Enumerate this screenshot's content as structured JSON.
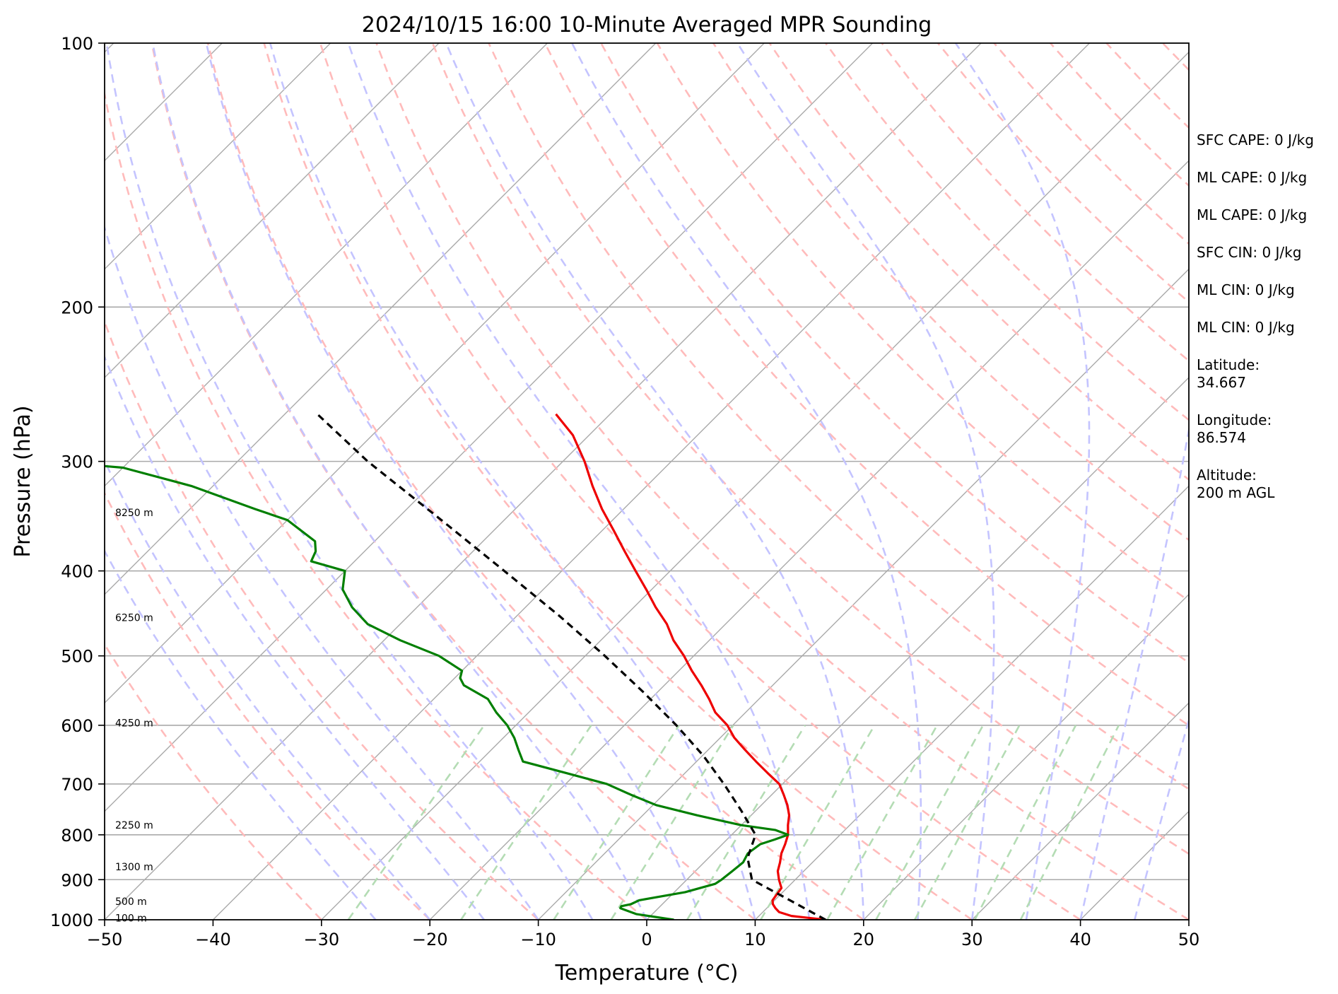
{
  "chart_data": {
    "type": "line",
    "subtype": "skew-t log-p sounding",
    "title": "2024/10/15 16:00 10-Minute Averaged MPR Sounding",
    "xlabel": "Temperature (°C)",
    "ylabel": "Pressure (hPa)",
    "xlim": [
      -50,
      50
    ],
    "ylim": [
      1000,
      100
    ],
    "y_scale": "log",
    "skew": true,
    "x_ticks": [
      "−50",
      "−40",
      "−30",
      "−20",
      "−10",
      "0",
      "10",
      "20",
      "30",
      "40",
      "50"
    ],
    "y_ticks": [
      "100",
      "200",
      "300",
      "400",
      "500",
      "600",
      "700",
      "800",
      "900",
      "1000"
    ],
    "grid": true,
    "colors": {
      "temperature": "#ee0000",
      "dewpoint": "#007f00",
      "parcel": "#000000",
      "isotherm": "#aaaaaa",
      "dry_adiabat": "#ffbbbb",
      "moist_adiabat": "#c4c4ff",
      "mixing_ratio": "#b4dcb4"
    },
    "series": [
      {
        "role": "temperature",
        "p": [
          1000,
          990,
          980,
          970,
          960,
          950,
          940,
          930,
          920,
          910,
          900,
          880,
          860,
          840,
          820,
          800,
          780,
          760,
          740,
          720,
          700,
          680,
          660,
          640,
          620,
          600,
          580,
          560,
          540,
          520,
          500,
          480,
          460,
          440,
          420,
          400,
          380,
          360,
          340,
          320,
          300,
          280,
          265
        ],
        "t": [
          16.5,
          13.0,
          11.5,
          10.8,
          10.2,
          9.8,
          9.7,
          9.6,
          9.5,
          9.0,
          8.5,
          7.6,
          7.0,
          6.3,
          5.8,
          5.2,
          4.3,
          3.5,
          2.4,
          1.1,
          -0.3,
          -2.4,
          -4.5,
          -6.6,
          -8.7,
          -10.5,
          -12.8,
          -14.6,
          -16.6,
          -18.8,
          -20.9,
          -23.3,
          -25.4,
          -28.0,
          -30.5,
          -33.2,
          -36.0,
          -38.9,
          -42.0,
          -45.0,
          -48.0,
          -51.5,
          -55.0
        ]
      },
      {
        "role": "dewpoint",
        "p": [
          1000,
          985,
          970,
          965,
          960,
          950,
          930,
          910,
          900,
          880,
          860,
          840,
          820,
          810,
          800,
          790,
          780,
          760,
          740,
          720,
          700,
          680,
          660,
          640,
          620,
          600,
          580,
          560,
          540,
          530,
          520,
          500,
          480,
          460,
          440,
          420,
          400,
          390,
          380,
          370,
          350,
          340,
          320,
          305,
          295,
          290
        ],
        "t": [
          2.5,
          -1.5,
          -3.5,
          -3.6,
          -2.9,
          -2.5,
          1.0,
          3.0,
          3.2,
          3.4,
          3.6,
          3.2,
          3.5,
          4.4,
          5.2,
          3.6,
          0.0,
          -5.0,
          -9.7,
          -13.0,
          -16.2,
          -21.0,
          -26.0,
          -27.5,
          -29.0,
          -30.8,
          -33.0,
          -35.0,
          -38.5,
          -39.5,
          -40.0,
          -43.5,
          -48.5,
          -53.0,
          -56.0,
          -58.5,
          -60.0,
          -64.0,
          -64.5,
          -65.5,
          -70.0,
          -74.0,
          -82.0,
          -90.0,
          -105.0,
          -112.0
        ]
      },
      {
        "role": "parcel",
        "p": [
          1000,
          950,
          900,
          850,
          800,
          750,
          700,
          650,
          600,
          550,
          500,
          450,
          400,
          350,
          300,
          265
        ],
        "t": [
          16.5,
          11.4,
          6.0,
          3.6,
          2.2,
          -1.4,
          -5.4,
          -9.9,
          -15.2,
          -21.3,
          -28.2,
          -36.1,
          -45.3,
          -55.8,
          -68.0,
          -77.0
        ]
      }
    ],
    "height_labels": [
      {
        "p": 995,
        "text": "100 m"
      },
      {
        "p": 953,
        "text": "500 m"
      },
      {
        "p": 870,
        "text": "1300 m"
      },
      {
        "p": 780,
        "text": "2250 m"
      },
      {
        "p": 596,
        "text": "4250 m"
      },
      {
        "p": 452,
        "text": "6250 m"
      },
      {
        "p": 343,
        "text": "8250 m"
      }
    ]
  },
  "stats": {
    "sfc_cape": "SFC CAPE: 0 J/kg",
    "ml_cape_1": "ML CAPE: 0 J/kg",
    "ml_cape_2": "ML CAPE: 0 J/kg",
    "sfc_cin": "SFC CIN: 0 J/kg",
    "ml_cin_1": "ML CIN: 0 J/kg",
    "ml_cin_2": "ML CIN: 0 J/kg",
    "latitude_label": "Latitude:",
    "latitude_value": "34.667",
    "longitude_label": "Longitude:",
    "longitude_value": "86.574",
    "altitude_label": "Altitude:",
    "altitude_value": "200 m AGL"
  }
}
